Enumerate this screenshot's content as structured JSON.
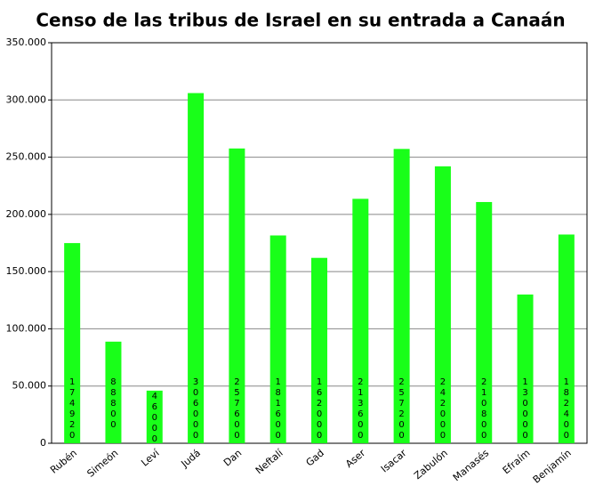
{
  "chart_data": {
    "type": "bar",
    "title": "Censo de las tribus de Israel en su entrada a Canaán",
    "categories": [
      "Rubén",
      "Simeón",
      "Leví",
      "Judá",
      "Dan",
      "Neftalí",
      "Gad",
      "Aser",
      "Isacar",
      "Zabulón",
      "Manasés",
      "Efraím",
      "Benjamín"
    ],
    "values": [
      174920,
      88800,
      46000,
      306000,
      257600,
      181600,
      162000,
      213600,
      257200,
      242000,
      210800,
      130000,
      182400
    ],
    "color": "#19ff19",
    "ylim": [
      0,
      350000
    ],
    "yticks": [
      0,
      {
        "value": 50000,
        "label": "50.000"
      },
      {
        "value": 100000,
        "label": "100.000"
      },
      {
        "value": 150000,
        "label": "150.000"
      },
      {
        "value": 200000,
        "label": "200.000"
      },
      {
        "value": 250000,
        "label": "250.000"
      },
      {
        "value": 300000,
        "label": "300.000"
      },
      {
        "value": 350000,
        "label": "350.000"
      }
    ],
    "grid": true
  }
}
